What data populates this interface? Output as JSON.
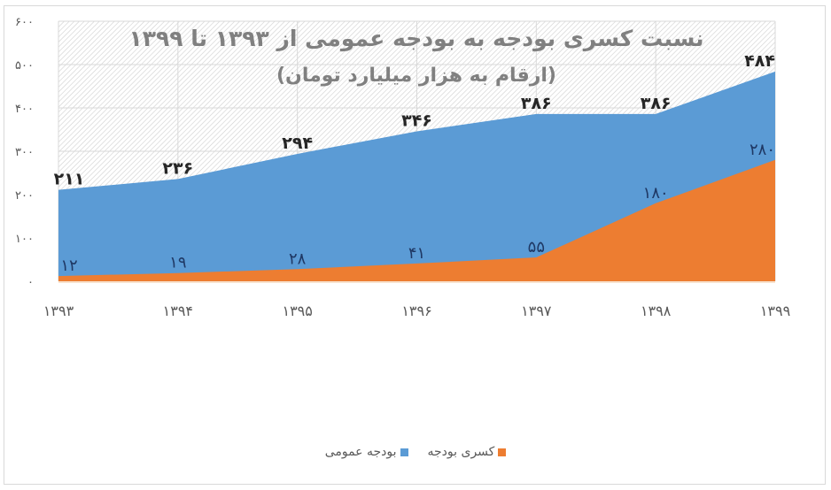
{
  "chart_data": {
    "type": "area",
    "title": "نسبت کسری بودجه به بودجه عمومی از ۱۳۹۳ تا ۱۳۹۹",
    "subtitle": "(ارقام به هزار میلیارد تومان)",
    "xlabel": "",
    "ylabel": "",
    "categories": [
      "۱۳۹۳",
      "۱۳۹۴",
      "۱۳۹۵",
      "۱۳۹۶",
      "۱۳۹۷",
      "۱۳۹۸",
      "۱۳۹۹"
    ],
    "x": [
      1393,
      1394,
      1395,
      1396,
      1397,
      1398,
      1399
    ],
    "series": [
      {
        "name": "بودجه عمومی",
        "color": "#5b9bd5",
        "values": [
          211,
          236,
          294,
          346,
          386,
          386,
          484
        ],
        "labels": [
          "۲۱۱",
          "۲۳۶",
          "۲۹۴",
          "۳۴۶",
          "۳۸۶",
          "۳۸۶",
          "۴۸۴"
        ]
      },
      {
        "name": "کسری بودجه",
        "color": "#ed7d31",
        "values": [
          12,
          19,
          28,
          41,
          55,
          180,
          280
        ],
        "labels": [
          "۱۲",
          "۱۹",
          "۲۸",
          "۴۱",
          "۵۵",
          "۱۸۰",
          "۲۸۰"
        ]
      }
    ],
    "ylim": [
      0,
      600
    ],
    "yticks": [
      0,
      100,
      200,
      300,
      400,
      500,
      600
    ],
    "ytick_labels": [
      "۰",
      "۱۰۰",
      "۲۰۰",
      "۳۰۰",
      "۴۰۰",
      "۵۰۰",
      "۶۰۰"
    ],
    "grid": true,
    "legend_position": "bottom"
  },
  "legend": {
    "items": [
      {
        "label": "کسری بودجه",
        "color": "#ed7d31"
      },
      {
        "label": "بودجه عمومی",
        "color": "#5b9bd5"
      }
    ]
  }
}
